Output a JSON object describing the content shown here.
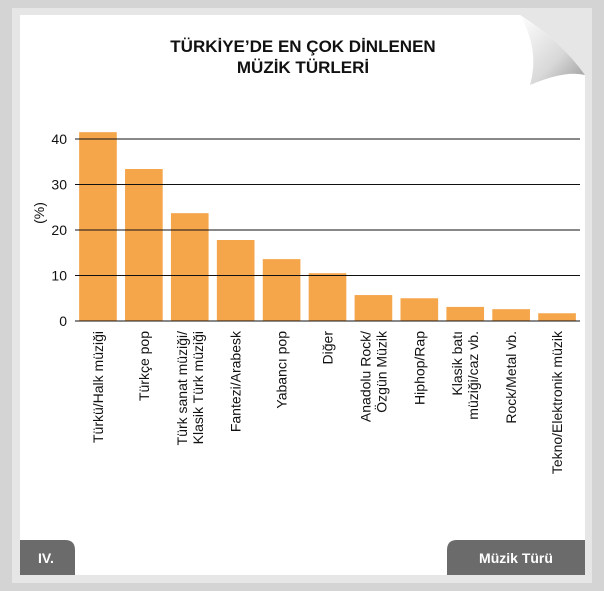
{
  "chart_data": {
    "type": "bar",
    "title": [
      "TÜRKİYE’DE EN ÇOK DİNLENEN",
      "MÜZİK TÜRLERİ"
    ],
    "y_label": "(%)",
    "x_label": "Müzik Türü",
    "panel_label": "IV.",
    "categories": [
      [
        "Türkü/Halk müziği"
      ],
      [
        "Türkçe pop"
      ],
      [
        "Türk sanat müziği/",
        "Klasik Türk müziği"
      ],
      [
        "Fantezi/Arabesk"
      ],
      [
        "Yabancı pop"
      ],
      [
        "Diğer"
      ],
      [
        "Anadolu Rock/",
        "Özgün Müzik"
      ],
      [
        "Hiphop/Rap"
      ],
      [
        "Klasik batı",
        "müziği/caz vb."
      ],
      [
        "Rock/Metal vb."
      ],
      [
        "Tekno/Elektronik müzik"
      ]
    ],
    "values": [
      41.5,
      33.4,
      23.7,
      17.8,
      13.6,
      10.5,
      5.7,
      5.0,
      3.1,
      2.6,
      1.7
    ],
    "color": "#f5a54a",
    "ylim": [
      0,
      40
    ],
    "yticks": [
      0,
      10,
      20,
      30,
      40
    ],
    "grid": true
  }
}
